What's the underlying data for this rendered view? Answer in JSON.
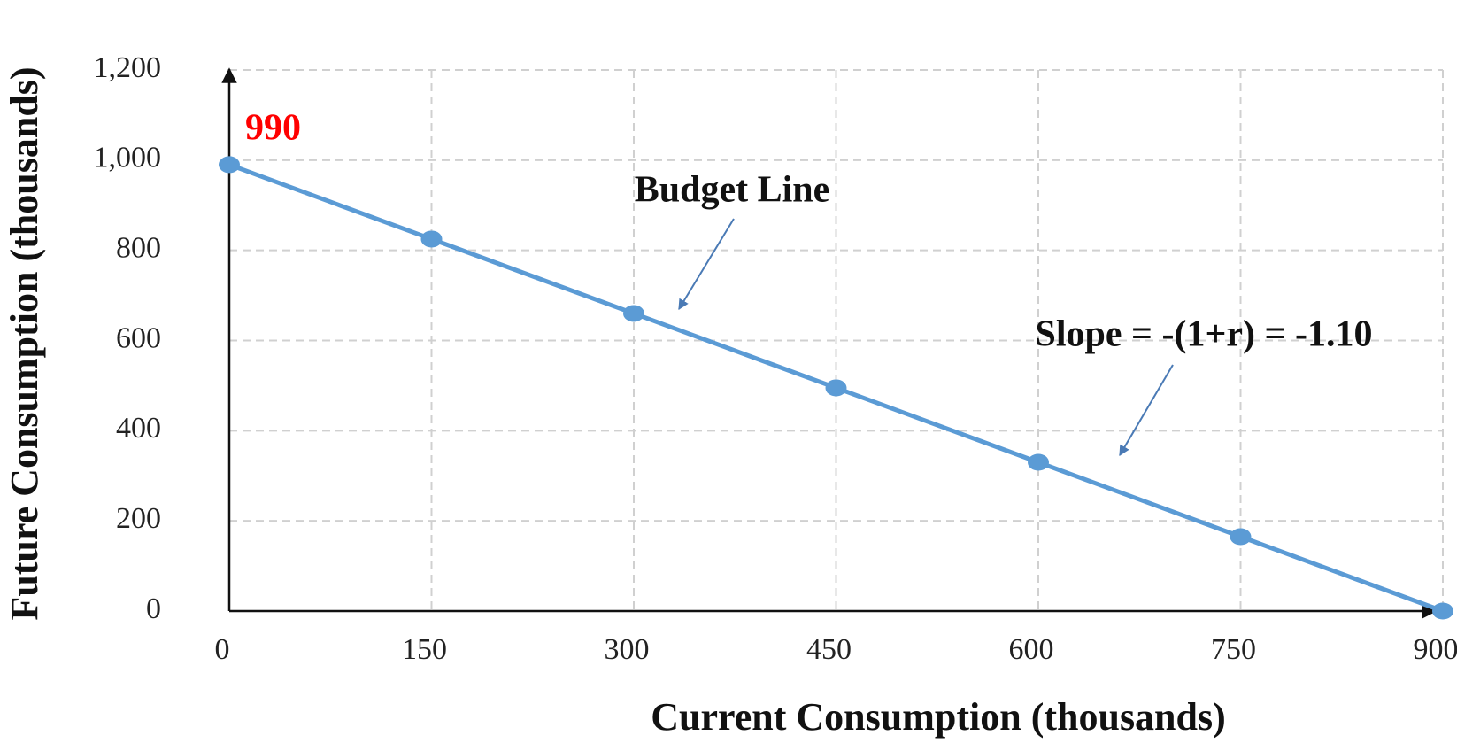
{
  "chart_data": {
    "type": "line",
    "x_label": "Current Consumption (thousands)",
    "y_label": "Future Consumption (thousands)",
    "x": [
      0,
      150,
      300,
      450,
      600,
      750,
      900
    ],
    "series": [
      {
        "name": "Budget Line",
        "color": "#5b9bd5",
        "values": [
          990,
          825,
          660,
          495,
          330,
          165,
          0
        ]
      }
    ],
    "xlim": [
      0,
      900
    ],
    "xticks": [
      0,
      150,
      300,
      450,
      600,
      750,
      900
    ],
    "ylim": [
      0,
      1200
    ],
    "yticks": [
      0,
      200,
      400,
      600,
      800,
      {
        "value": 1000,
        "label": "1,000"
      },
      {
        "value": 1200,
        "label": "1,200"
      }
    ],
    "grid": true,
    "annotations": [
      {
        "text": "990",
        "color": "#ff0000"
      },
      {
        "text": "Budget Line",
        "color": "#111111"
      },
      {
        "text": "Slope = -(1+r) = -1.10",
        "color": "#111111"
      }
    ]
  }
}
